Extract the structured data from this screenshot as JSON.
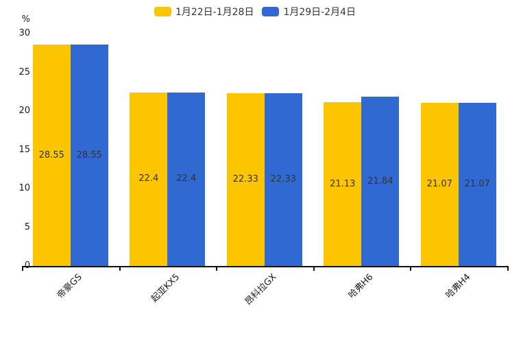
{
  "chart_data": {
    "type": "bar",
    "title": "",
    "xlabel": "",
    "ylabel": "%",
    "categories": [
      "帝豪GS",
      "起亚KX5",
      "昂科拉GX",
      "哈弗H6",
      "哈弗H4"
    ],
    "series": [
      {
        "name": "1月22日-1月28日",
        "color": "#FDC500",
        "values": [
          28.55,
          22.4,
          22.33,
          21.13,
          21.07
        ]
      },
      {
        "name": "1月29日-2月4日",
        "color": "#3069D2",
        "values": [
          28.55,
          22.4,
          22.33,
          21.84,
          21.07
        ]
      }
    ],
    "ylim": [
      0,
      30
    ],
    "yticks": [
      0,
      5,
      10,
      15,
      20,
      25,
      30
    ],
    "grid": false,
    "legend_position": "top-center",
    "value_label_color": "#333333",
    "axis_color": "#111111"
  }
}
